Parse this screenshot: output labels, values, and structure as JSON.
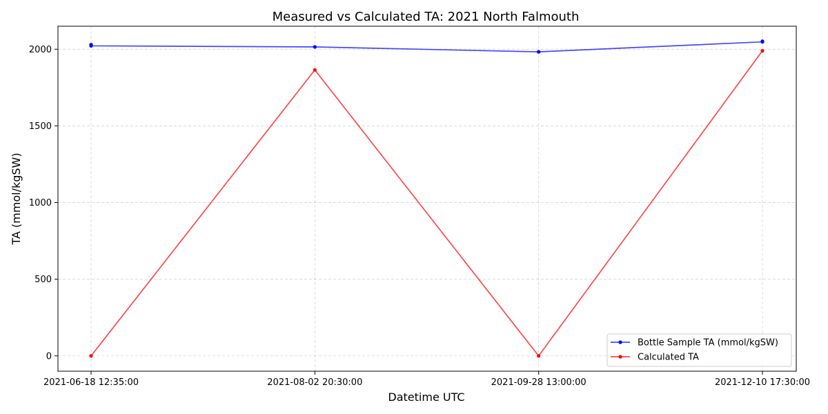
{
  "chart_data": {
    "type": "line",
    "title": "Measured vs Calculated TA: 2021 North Falmouth",
    "xlabel": "Datetime UTC",
    "ylabel": "TA (mmol/kgSW)",
    "categories": [
      "2021-06-18 12:35:00",
      "2021-08-02 20:30:00",
      "2021-09-28 13:00:00",
      "2021-12-10 17:30:00"
    ],
    "ylim": [
      -100,
      2150
    ],
    "yticks": [
      0,
      500,
      1000,
      1500,
      2000
    ],
    "grid": true,
    "legend_position": "bottom-right",
    "series": [
      {
        "name": "Bottle Sample TA (mmol/kgSW)",
        "color": "#0000ff",
        "points": [
          {
            "x": 0,
            "y": 2030
          },
          {
            "x": 0,
            "y": 2022
          },
          {
            "x": 1,
            "y": 2015
          },
          {
            "x": 2,
            "y": 1983
          },
          {
            "x": 3,
            "y": 2048
          },
          {
            "x": 3,
            "y": 2052
          }
        ]
      },
      {
        "name": "Calculated TA",
        "color": "#ff0000",
        "points": [
          {
            "x": 0,
            "y": 0
          },
          {
            "x": 1,
            "y": 1865
          },
          {
            "x": 2,
            "y": 0
          },
          {
            "x": 3,
            "y": 1990
          }
        ]
      }
    ]
  }
}
